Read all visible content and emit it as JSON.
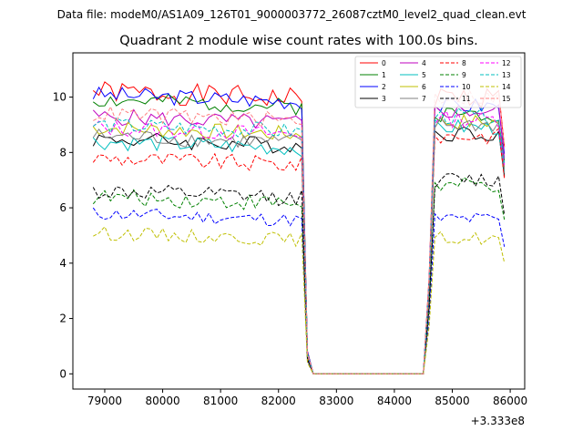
{
  "chart_data": {
    "type": "line",
    "suptitle": "Data file: modeM0/AS1A09_126T01_9000003772_26087cztM0_level2_quad_clean.evt",
    "title": "Quadrant 2 module wise count rates with 100.0s bins.",
    "xlabel": "",
    "ylabel": "",
    "x_offset_label": "+3.333e8",
    "xlim": [
      78450,
      86250
    ],
    "ylim": [
      -0.55,
      11.6
    ],
    "x_ticks": [
      79000,
      80000,
      81000,
      82000,
      83000,
      84000,
      85000,
      86000
    ],
    "x_tick_labels": [
      "79000",
      "80000",
      "81000",
      "82000",
      "83000",
      "84000",
      "85000",
      "86000"
    ],
    "y_ticks": [
      0,
      2,
      4,
      6,
      8,
      10
    ],
    "y_tick_labels": [
      "0",
      "2",
      "4",
      "6",
      "8",
      "10"
    ],
    "legend_position": "top-right",
    "legend_columns": 4,
    "x_start": 78800,
    "x_step": 100,
    "segments": [
      [
        78800,
        82400,
        "on"
      ],
      [
        82500,
        82600,
        "drop"
      ],
      [
        82600,
        84500,
        "zero"
      ],
      [
        84600,
        84700,
        "rise"
      ],
      [
        84700,
        85900,
        "on"
      ]
    ],
    "series": [
      {
        "name": "0",
        "color": "#ff0000",
        "dash": "solid",
        "level_a": 10.2,
        "level_b": 10.0,
        "amp": 0.4,
        "seed": 1
      },
      {
        "name": "1",
        "color": "#008000",
        "dash": "solid",
        "level_a": 9.9,
        "level_b": 9.4,
        "amp": 0.3,
        "seed": 2
      },
      {
        "name": "2",
        "color": "#0000ff",
        "dash": "solid",
        "level_a": 10.1,
        "level_b": 9.7,
        "amp": 0.3,
        "seed": 3
      },
      {
        "name": "3",
        "color": "#000000",
        "dash": "solid",
        "level_a": 8.5,
        "level_b": 8.7,
        "amp": 0.3,
        "seed": 4
      },
      {
        "name": "4",
        "color": "#bf00bf",
        "dash": "solid",
        "level_a": 9.3,
        "level_b": 9.5,
        "amp": 0.3,
        "seed": 5
      },
      {
        "name": "5",
        "color": "#00bfbf",
        "dash": "solid",
        "level_a": 8.4,
        "level_b": 8.9,
        "amp": 0.3,
        "seed": 6
      },
      {
        "name": "6",
        "color": "#bfbf00",
        "dash": "solid",
        "level_a": 8.9,
        "level_b": 9.1,
        "amp": 0.3,
        "seed": 7
      },
      {
        "name": "7",
        "color": "#808080",
        "dash": "solid",
        "level_a": 8.6,
        "level_b": 9.0,
        "amp": 0.3,
        "seed": 8
      },
      {
        "name": "8",
        "color": "#ff0000",
        "dash": "dashed",
        "level_a": 7.8,
        "level_b": 8.6,
        "amp": 0.3,
        "seed": 9
      },
      {
        "name": "9",
        "color": "#008000",
        "dash": "dashed",
        "level_a": 6.4,
        "level_b": 6.8,
        "amp": 0.3,
        "seed": 10
      },
      {
        "name": "10",
        "color": "#0000ff",
        "dash": "dashed",
        "level_a": 5.8,
        "level_b": 5.6,
        "amp": 0.25,
        "seed": 11
      },
      {
        "name": "11",
        "color": "#000000",
        "dash": "dashed",
        "level_a": 6.6,
        "level_b": 7.0,
        "amp": 0.3,
        "seed": 12
      },
      {
        "name": "12",
        "color": "#ff00ff",
        "dash": "dashed",
        "level_a": 8.9,
        "level_b": 9.2,
        "amp": 0.3,
        "seed": 13
      },
      {
        "name": "13",
        "color": "#00bfbf",
        "dash": "dashed",
        "level_a": 9.0,
        "level_b": 9.3,
        "amp": 0.3,
        "seed": 14
      },
      {
        "name": "14",
        "color": "#bfbf00",
        "dash": "dashed",
        "level_a": 5.1,
        "level_b": 4.9,
        "amp": 0.25,
        "seed": 15
      },
      {
        "name": "15",
        "color": "#ff7f7f",
        "dash": "dashed",
        "level_a": 9.4,
        "level_b": 10.0,
        "amp": 0.3,
        "seed": 16
      }
    ]
  }
}
